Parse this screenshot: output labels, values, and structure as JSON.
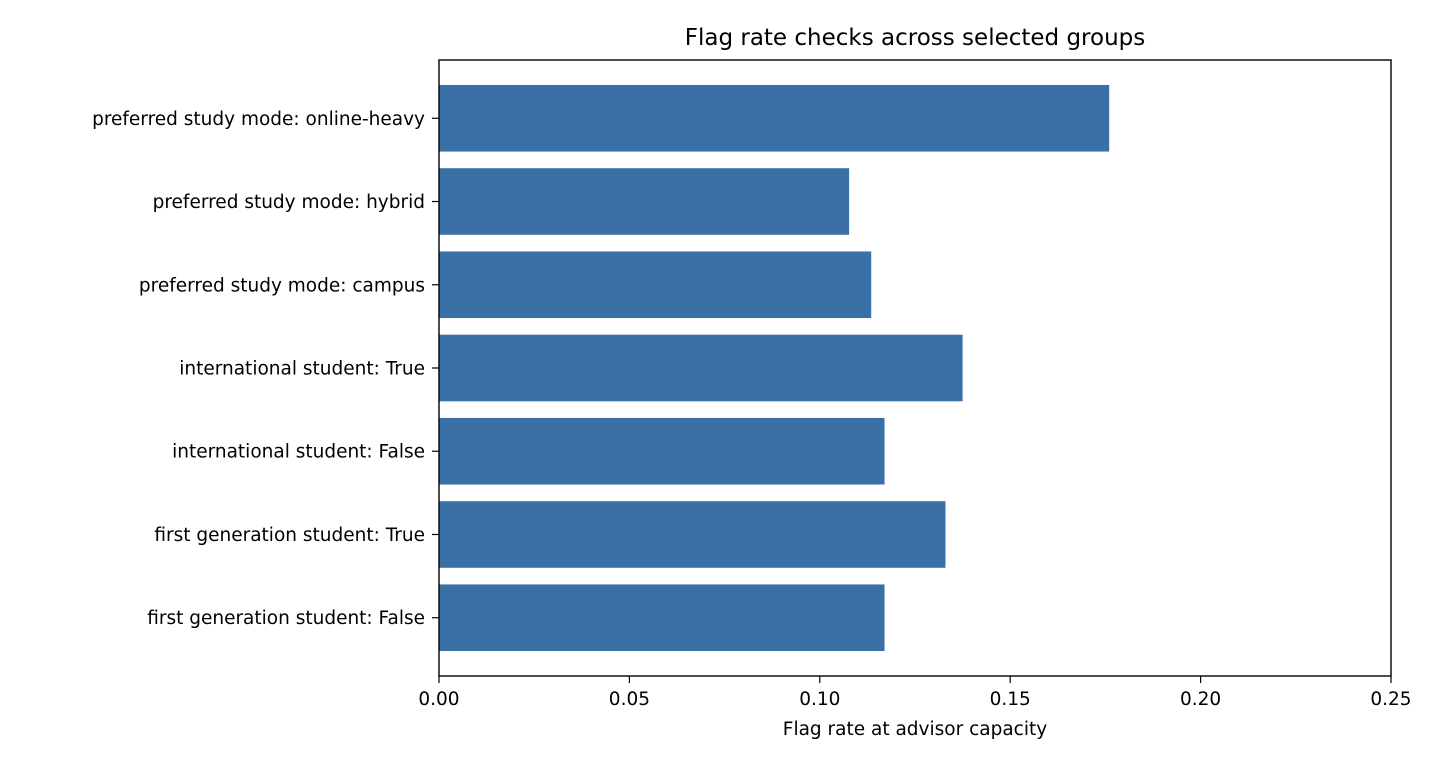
{
  "chart_data": {
    "type": "bar",
    "orientation": "horizontal",
    "title": "Flag rate checks across selected groups",
    "xlabel": "Flag rate at advisor capacity",
    "ylabel": "",
    "xlim": [
      0,
      0.25
    ],
    "xticks": [
      "0.00",
      "0.05",
      "0.10",
      "0.15",
      "0.20",
      "0.25"
    ],
    "grid": false,
    "bar_color": "#3a70a5",
    "categories": [
      "first generation student: False",
      "first generation student: True",
      "international student: False",
      "international student: True",
      "preferred study mode: campus",
      "preferred study mode: hybrid",
      "preferred study mode: online-heavy"
    ],
    "values": [
      0.117,
      0.133,
      0.117,
      0.1375,
      0.1135,
      0.1077,
      0.176
    ]
  }
}
